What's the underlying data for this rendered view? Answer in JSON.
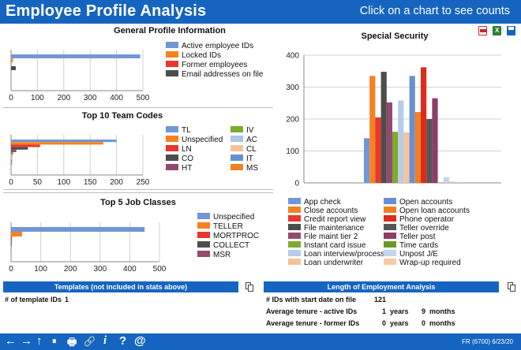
{
  "header": {
    "title": "Employee Profile Analysis",
    "hint": "Click on a chart to see counts"
  },
  "export_icons": [
    "pdf-icon",
    "excel-icon",
    "save-icon"
  ],
  "chart_data": [
    {
      "id": "general",
      "type": "bar",
      "orientation": "horizontal",
      "title": "General Profile Information",
      "xlim": [
        0,
        500
      ],
      "xticks": [
        "0",
        "100",
        "200",
        "300",
        "400",
        "500"
      ],
      "series": [
        {
          "name": "Active employee IDs",
          "values": [
            490
          ],
          "color": "#7296d6"
        },
        {
          "name": "Locked IDs",
          "values": [
            7
          ],
          "color": "#f58220"
        },
        {
          "name": "Former employees",
          "values": [
            1
          ],
          "color": "#e8372c"
        },
        {
          "name": "Email addresses on file",
          "values": [
            18
          ],
          "color": "#4d4d4d"
        }
      ]
    },
    {
      "id": "teamcodes",
      "type": "bar",
      "orientation": "horizontal",
      "title": "Top 10 Team Codes",
      "xlim": [
        0,
        250
      ],
      "xticks": [
        "0",
        "50",
        "100",
        "150",
        "200",
        "250"
      ],
      "series": [
        {
          "name": "TL",
          "values": [
            200
          ],
          "color": "#7296d6"
        },
        {
          "name": "Unspecified",
          "values": [
            175
          ],
          "color": "#f58220"
        },
        {
          "name": "LN",
          "values": [
            55
          ],
          "color": "#e8372c"
        },
        {
          "name": "CO",
          "values": [
            32
          ],
          "color": "#4d4d4d"
        },
        {
          "name": "HT",
          "values": [
            10
          ],
          "color": "#944a6e"
        },
        {
          "name": "IV",
          "values": [
            4
          ],
          "color": "#7eab2c"
        },
        {
          "name": "AC",
          "values": [
            3
          ],
          "color": "#a9c5e8"
        },
        {
          "name": "CL",
          "values": [
            3
          ],
          "color": "#f5c39a"
        },
        {
          "name": "IT",
          "values": [
            2
          ],
          "color": "#6a8fd0"
        },
        {
          "name": "MS",
          "values": [
            2
          ],
          "color": "#f08020"
        }
      ]
    },
    {
      "id": "jobclasses",
      "type": "bar",
      "orientation": "horizontal",
      "title": "Top 5 Job Classes",
      "xlim": [
        0,
        500
      ],
      "xticks": [
        "0",
        "100",
        "200",
        "300",
        "400",
        "500"
      ],
      "series": [
        {
          "name": "Unspecified",
          "values": [
            450
          ],
          "color": "#7296d6"
        },
        {
          "name": "TELLER",
          "values": [
            37
          ],
          "color": "#f58220"
        },
        {
          "name": "MORTPROC",
          "values": [
            3
          ],
          "color": "#e8372c"
        },
        {
          "name": "COLLECT",
          "values": [
            2
          ],
          "color": "#4d4d4d"
        },
        {
          "name": "MSR",
          "values": [
            1
          ],
          "color": "#944a6e"
        }
      ]
    },
    {
      "id": "security",
      "type": "bar",
      "orientation": "vertical",
      "title": "Special Security",
      "ylim": [
        0,
        400
      ],
      "yticks": [
        "0",
        "100",
        "200",
        "300",
        "400"
      ],
      "series": [
        {
          "name": "App check",
          "values": [
            140
          ],
          "color": "#7296d6"
        },
        {
          "name": "Close accounts",
          "values": [
            335
          ],
          "color": "#f58220"
        },
        {
          "name": "Credit report view",
          "values": [
            205
          ],
          "color": "#e8372c"
        },
        {
          "name": "File maintenance",
          "values": [
            348
          ],
          "color": "#4d4d4d"
        },
        {
          "name": "File maint tier 2",
          "values": [
            252
          ],
          "color": "#944a6e"
        },
        {
          "name": "Instant card issue",
          "values": [
            160
          ],
          "color": "#7eab2c"
        },
        {
          "name": "Loan interview/process",
          "values": [
            258
          ],
          "color": "#b8cbe8"
        },
        {
          "name": "Loan underwriter",
          "values": [
            158
          ],
          "color": "#f5c39a"
        },
        {
          "name": "Open accounts",
          "values": [
            335
          ],
          "color": "#6a8fd0"
        },
        {
          "name": "Open loan accounts",
          "values": [
            222
          ],
          "color": "#f08020"
        },
        {
          "name": "Phone operator",
          "values": [
            362
          ],
          "color": "#e02a1e"
        },
        {
          "name": "Teller override",
          "values": [
            200
          ],
          "color": "#555555"
        },
        {
          "name": "Teller post",
          "values": [
            265
          ],
          "color": "#8e3d66"
        },
        {
          "name": "Time cards",
          "values": [
            0
          ],
          "color": "#6b9a26"
        },
        {
          "name": "Unpost J/E",
          "values": [
            18
          ],
          "color": "#c4d5ee"
        },
        {
          "name": "Wrap-up required",
          "values": [
            5
          ],
          "color": "#f7caa2"
        }
      ]
    }
  ],
  "templates": {
    "title": "Templates (not included in stats above)",
    "label": "# of template IDs",
    "value": "1"
  },
  "employment": {
    "title": "Length of Employment Analysis",
    "start_label": "# IDs with start date on file",
    "start_value": "121",
    "active_label": "Average tenure - active IDs",
    "active_years": "1",
    "active_months": "9",
    "former_label": "Average tenure - former IDs",
    "former_years": "0",
    "former_months": "0",
    "years_word": "years",
    "months_word": "months"
  },
  "footer": {
    "nav": [
      "←",
      "→",
      "↑",
      "⏸",
      "🖶",
      "🔗",
      "i",
      "?",
      "@"
    ],
    "version": "FR (6700) 6/23/20"
  }
}
